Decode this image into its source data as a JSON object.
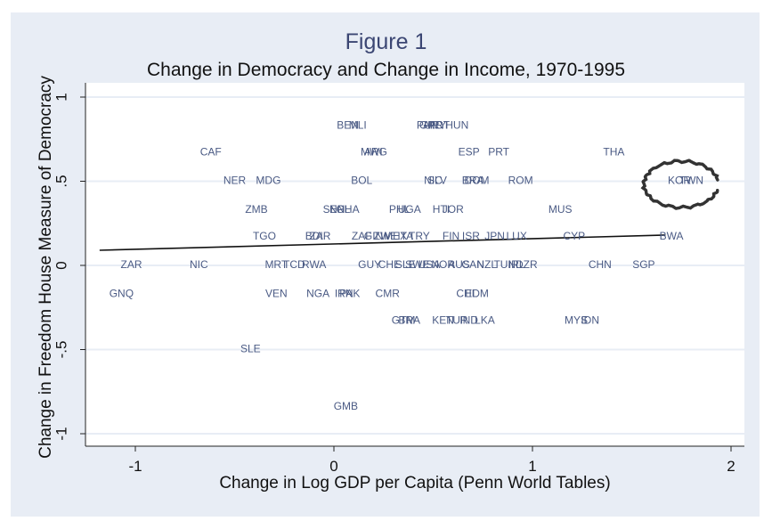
{
  "figure_label": "Figure 1",
  "chart_data": {
    "type": "scatter",
    "title": "Change in Democracy and Change in Income, 1970-1995",
    "xlabel": "Change in Log GDP per Capita (Penn World Tables)",
    "ylabel": "Change in Freedom House Measure of Democracy",
    "xlim": [
      -1.2,
      2.05
    ],
    "ylim": [
      -1.08,
      1.08
    ],
    "xticks": [
      -1,
      0,
      1,
      2
    ],
    "xtick_labels": [
      "-1",
      "0",
      "1",
      "2"
    ],
    "yticks": [
      -1,
      -0.5,
      0,
      0.5,
      1
    ],
    "ytick_labels": [
      "-1",
      "-.5",
      "0",
      ".5",
      "1"
    ],
    "grid": true,
    "fit_line": {
      "x": [
        -1.18,
        1.67
      ],
      "y": [
        0.09,
        0.18
      ]
    },
    "points": [
      {
        "label": "BEN",
        "x": 0.07,
        "y": 0.83
      },
      {
        "label": "MLI",
        "x": 0.12,
        "y": 0.83
      },
      {
        "label": "PAN",
        "x": 0.47,
        "y": 0.83
      },
      {
        "label": "GRC",
        "x": 0.49,
        "y": 0.83
      },
      {
        "label": "URY",
        "x": 0.51,
        "y": 0.83
      },
      {
        "label": "PRT",
        "x": 0.53,
        "y": 0.83
      },
      {
        "label": "HUN",
        "x": 0.62,
        "y": 0.83
      },
      {
        "label": "CAF",
        "x": -0.62,
        "y": 0.67
      },
      {
        "label": "MWI",
        "x": 0.19,
        "y": 0.67
      },
      {
        "label": "ARG",
        "x": 0.21,
        "y": 0.67
      },
      {
        "label": "ESP",
        "x": 0.68,
        "y": 0.67
      },
      {
        "label": "PRT",
        "x": 0.83,
        "y": 0.67
      },
      {
        "label": "THA",
        "x": 1.41,
        "y": 0.67
      },
      {
        "label": "NER",
        "x": -0.5,
        "y": 0.5
      },
      {
        "label": "MDG",
        "x": -0.33,
        "y": 0.5
      },
      {
        "label": "BOL",
        "x": 0.14,
        "y": 0.5
      },
      {
        "label": "NIC",
        "x": 0.5,
        "y": 0.5
      },
      {
        "label": "SLV",
        "x": 0.52,
        "y": 0.5
      },
      {
        "label": "BRA",
        "x": 0.7,
        "y": 0.5
      },
      {
        "label": "DOM",
        "x": 0.72,
        "y": 0.5
      },
      {
        "label": "ROM",
        "x": 0.94,
        "y": 0.5
      },
      {
        "label": "KOR",
        "x": 1.74,
        "y": 0.5
      },
      {
        "label": "TWN",
        "x": 1.8,
        "y": 0.5
      },
      {
        "label": "ZMB",
        "x": -0.39,
        "y": 0.33
      },
      {
        "label": "SEN",
        "x": 0.0,
        "y": 0.33
      },
      {
        "label": "NPL",
        "x": 0.03,
        "y": 0.33
      },
      {
        "label": "GHA",
        "x": 0.07,
        "y": 0.33
      },
      {
        "label": "PHL",
        "x": 0.33,
        "y": 0.33
      },
      {
        "label": "UGA",
        "x": 0.38,
        "y": 0.33
      },
      {
        "label": "HTI",
        "x": 0.54,
        "y": 0.33
      },
      {
        "label": "JOR",
        "x": 0.6,
        "y": 0.33
      },
      {
        "label": "MUS",
        "x": 1.14,
        "y": 0.33
      },
      {
        "label": "TGO",
        "x": -0.35,
        "y": 0.17
      },
      {
        "label": "BDI",
        "x": -0.1,
        "y": 0.17
      },
      {
        "label": "ZAR",
        "x": -0.07,
        "y": 0.17
      },
      {
        "label": "ZAF",
        "x": 0.14,
        "y": 0.17
      },
      {
        "label": "GIN",
        "x": 0.2,
        "y": 0.17
      },
      {
        "label": "ZWE",
        "x": 0.26,
        "y": 0.17
      },
      {
        "label": "MEX",
        "x": 0.31,
        "y": 0.17
      },
      {
        "label": "ITA",
        "x": 0.36,
        "y": 0.17
      },
      {
        "label": "TRY",
        "x": 0.43,
        "y": 0.17
      },
      {
        "label": "FIN",
        "x": 0.59,
        "y": 0.17
      },
      {
        "label": "ISR",
        "x": 0.69,
        "y": 0.17
      },
      {
        "label": "JPN",
        "x": 0.81,
        "y": 0.17
      },
      {
        "label": "LUX",
        "x": 0.92,
        "y": 0.17
      },
      {
        "label": "CYP",
        "x": 1.21,
        "y": 0.17
      },
      {
        "label": "BWA",
        "x": 1.7,
        "y": 0.17
      },
      {
        "label": "ZAR",
        "x": -1.02,
        "y": 0.0
      },
      {
        "label": "NIC",
        "x": -0.68,
        "y": 0.0
      },
      {
        "label": "MRT",
        "x": -0.29,
        "y": 0.0
      },
      {
        "label": "TCD",
        "x": -0.2,
        "y": 0.0
      },
      {
        "label": "RWA",
        "x": -0.1,
        "y": 0.0
      },
      {
        "label": "GUY",
        "x": 0.18,
        "y": 0.0
      },
      {
        "label": "CHE",
        "x": 0.28,
        "y": 0.0
      },
      {
        "label": "SLE",
        "x": 0.36,
        "y": 0.0
      },
      {
        "label": "SWE",
        "x": 0.42,
        "y": 0.0
      },
      {
        "label": "USA",
        "x": 0.48,
        "y": 0.0
      },
      {
        "label": "NOR",
        "x": 0.55,
        "y": 0.0
      },
      {
        "label": "AUS",
        "x": 0.63,
        "y": 0.0
      },
      {
        "label": "CAN",
        "x": 0.7,
        "y": 0.0
      },
      {
        "label": "NZL",
        "x": 0.77,
        "y": 0.0
      },
      {
        "label": "TUN",
        "x": 0.86,
        "y": 0.0
      },
      {
        "label": "IRL",
        "x": 0.92,
        "y": 0.0
      },
      {
        "label": "DZR",
        "x": 0.97,
        "y": 0.0
      },
      {
        "label": "CHN",
        "x": 1.34,
        "y": 0.0
      },
      {
        "label": "SGP",
        "x": 1.56,
        "y": 0.0
      },
      {
        "label": "GNQ",
        "x": -1.07,
        "y": -0.17
      },
      {
        "label": "VEN",
        "x": -0.29,
        "y": -0.17
      },
      {
        "label": "NGA",
        "x": -0.08,
        "y": -0.17
      },
      {
        "label": "IRN",
        "x": 0.05,
        "y": -0.17
      },
      {
        "label": "PAK",
        "x": 0.08,
        "y": -0.17
      },
      {
        "label": "CMR",
        "x": 0.27,
        "y": -0.17
      },
      {
        "label": "CHL",
        "x": 0.67,
        "y": -0.17
      },
      {
        "label": "EDM",
        "x": 0.72,
        "y": -0.17
      },
      {
        "label": "GTM",
        "x": 0.35,
        "y": -0.33
      },
      {
        "label": "BRA",
        "x": 0.38,
        "y": -0.33
      },
      {
        "label": "KEN",
        "x": 0.55,
        "y": -0.33
      },
      {
        "label": "TUR",
        "x": 0.62,
        "y": -0.33
      },
      {
        "label": "IND",
        "x": 0.68,
        "y": -0.33
      },
      {
        "label": "LKA",
        "x": 0.76,
        "y": -0.33
      },
      {
        "label": "MYS",
        "x": 1.22,
        "y": -0.33
      },
      {
        "label": "IDN",
        "x": 1.29,
        "y": -0.33
      },
      {
        "label": "SLE",
        "x": -0.42,
        "y": -0.5
      },
      {
        "label": "GMB",
        "x": 0.06,
        "y": -0.84
      }
    ],
    "annotation": {
      "type": "hand-drawn circle",
      "around": [
        "KOR",
        "TWN"
      ]
    }
  }
}
